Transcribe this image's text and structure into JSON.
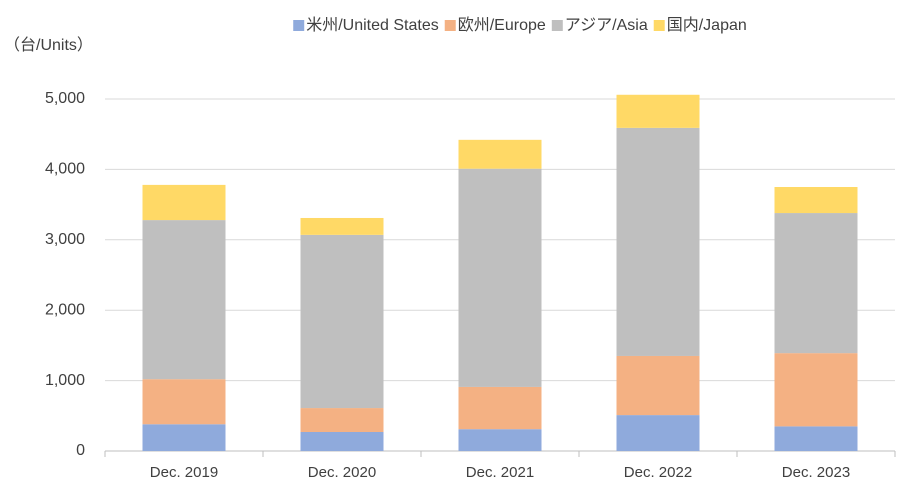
{
  "chart_data": {
    "type": "stacked_bar",
    "y_label": "（台/Units）",
    "categories": [
      "Dec. 2019",
      "Dec. 2020",
      "Dec. 2021",
      "Dec. 2022",
      "Dec. 2023"
    ],
    "series": [
      {
        "name": "米州/United States",
        "color": "#8faadc",
        "values": [
          380,
          270,
          310,
          510,
          350
        ]
      },
      {
        "name": "欧州/Europe",
        "color": "#f4b183",
        "values": [
          640,
          340,
          600,
          840,
          1040
        ]
      },
      {
        "name": "アジア/Asia",
        "color": "#bfbfbf",
        "values": [
          2260,
          2460,
          3100,
          3240,
          1990
        ]
      },
      {
        "name": "国内/Japan",
        "color": "#ffd966",
        "values": [
          500,
          240,
          410,
          470,
          370
        ]
      }
    ],
    "ylim": [
      0,
      5000
    ],
    "yticks": [
      0,
      {
        "value": 1000,
        "label": "1,000"
      },
      {
        "value": 2000,
        "label": "2,000"
      },
      {
        "value": 3000,
        "label": "3,000"
      },
      {
        "value": 4000,
        "label": "4,000"
      },
      {
        "value": 5000,
        "label": "5,000"
      }
    ],
    "grid": true,
    "legend": "top"
  }
}
